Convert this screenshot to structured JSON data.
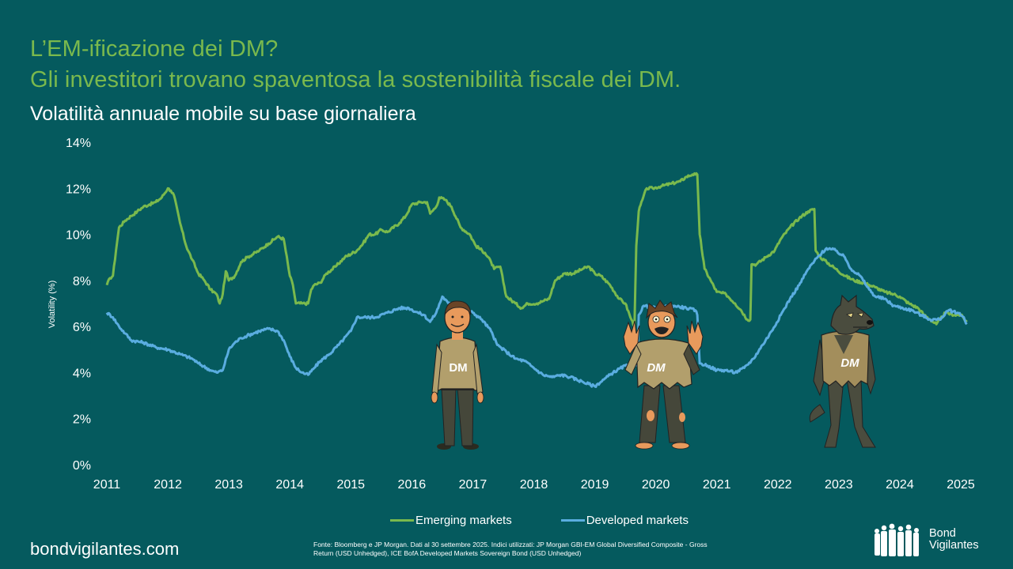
{
  "header": {
    "title_line1": "L’EM-ificazione dei DM?",
    "title_line2": "Gli investitori trovano spaventosa la sostenibilità fiscale dei DM.",
    "subtitle": "Volatilità annuale mobile su base giornaliera"
  },
  "colors": {
    "background": "#055a5e",
    "title_green": "#7ab94d",
    "emerging": "#7ab94d",
    "developed": "#5aade0"
  },
  "chart_data": {
    "type": "line",
    "title": "Volatilità annuale mobile su base giornaliera",
    "xlabel": "",
    "ylabel": "Volatility (%)",
    "xlim": [
      2011,
      2025.2
    ],
    "ylim": [
      0,
      14
    ],
    "yticks": [
      "0%",
      "2%",
      "4%",
      "6%",
      "8%",
      "10%",
      "12%",
      "14%"
    ],
    "ytick_values": [
      0,
      2,
      4,
      6,
      8,
      10,
      12,
      14
    ],
    "xticks": [
      "2011",
      "2012",
      "2013",
      "2014",
      "2015",
      "2016",
      "2017",
      "2018",
      "2019",
      "2020",
      "2021",
      "2022",
      "2023",
      "2024",
      "2025"
    ],
    "xtick_values": [
      2011,
      2012,
      2013,
      2014,
      2015,
      2016,
      2017,
      2018,
      2019,
      2020,
      2021,
      2022,
      2023,
      2024,
      2025
    ],
    "grid": false,
    "legend_position": "bottom",
    "series": [
      {
        "name": "Emerging markets",
        "color": "#7ab94d",
        "x": [
          2011.0,
          2011.05,
          2011.1,
          2011.15,
          2011.2,
          2011.3,
          2011.4,
          2011.5,
          2011.6,
          2011.7,
          2011.8,
          2011.9,
          2012.0,
          2012.05,
          2012.1,
          2012.2,
          2012.3,
          2012.4,
          2012.5,
          2012.6,
          2012.7,
          2012.8,
          2012.85,
          2012.9,
          2012.95,
          2013.0,
          2013.1,
          2013.2,
          2013.3,
          2013.5,
          2013.65,
          2013.8,
          2013.9,
          2014.0,
          2014.05,
          2014.1,
          2014.2,
          2014.3,
          2014.35,
          2014.4,
          2014.5,
          2014.6,
          2014.75,
          2014.9,
          2015.1,
          2015.2,
          2015.3,
          2015.4,
          2015.5,
          2015.6,
          2015.8,
          2015.9,
          2016.0,
          2016.15,
          2016.25,
          2016.3,
          2016.4,
          2016.45,
          2016.55,
          2016.65,
          2016.8,
          2016.95,
          2017.05,
          2017.2,
          2017.3,
          2017.35,
          2017.45,
          2017.55,
          2017.7,
          2017.8,
          2017.9,
          2018.05,
          2018.15,
          2018.25,
          2018.35,
          2018.5,
          2018.65,
          2018.8,
          2018.9,
          2019.0,
          2019.1,
          2019.25,
          2019.4,
          2019.5,
          2019.6,
          2019.65,
          2019.68,
          2019.72,
          2019.78,
          2019.85,
          2019.95,
          2020.1,
          2020.25,
          2020.4,
          2020.5,
          2020.6,
          2020.65,
          2020.68,
          2020.72,
          2020.8,
          2020.9,
          2021.0,
          2021.15,
          2021.3,
          2021.4,
          2021.5,
          2021.55,
          2021.57,
          2021.65,
          2021.8,
          2021.95,
          2022.05,
          2022.2,
          2022.35,
          2022.5,
          2022.6,
          2022.62,
          2022.7,
          2022.8,
          2022.95,
          2023.1,
          2023.25,
          2023.4,
          2023.5,
          2023.6,
          2023.75,
          2023.9,
          2024.0,
          2024.15,
          2024.3,
          2024.4,
          2024.5,
          2024.6,
          2024.75,
          2024.9,
          2025.0,
          2025.1
        ],
        "values": [
          7.8,
          8.1,
          8.2,
          9.3,
          10.3,
          10.6,
          10.8,
          11.0,
          11.2,
          11.3,
          11.4,
          11.6,
          12.0,
          11.9,
          11.7,
          10.5,
          9.5,
          8.9,
          8.3,
          8.0,
          7.6,
          7.4,
          7.0,
          7.4,
          8.4,
          8.0,
          8.2,
          8.8,
          9.0,
          9.3,
          9.6,
          9.9,
          9.8,
          8.2,
          7.8,
          7.0,
          7.0,
          7.0,
          7.6,
          7.8,
          7.9,
          8.3,
          8.6,
          9.0,
          9.3,
          9.6,
          10.0,
          10.0,
          10.2,
          10.1,
          10.5,
          10.8,
          11.3,
          11.4,
          11.4,
          10.9,
          11.2,
          11.6,
          11.5,
          11.2,
          10.3,
          10.0,
          9.5,
          9.2,
          8.8,
          8.5,
          8.6,
          7.3,
          7.0,
          6.8,
          7.0,
          7.0,
          7.1,
          7.2,
          8.0,
          8.3,
          8.3,
          8.5,
          8.6,
          8.3,
          8.2,
          7.8,
          7.2,
          7.0,
          6.3,
          6.0,
          9.5,
          11.0,
          11.5,
          12.0,
          12.0,
          12.1,
          12.2,
          12.3,
          12.5,
          12.6,
          12.6,
          12.6,
          10.0,
          8.5,
          8.0,
          7.5,
          7.4,
          7.0,
          6.7,
          6.3,
          6.3,
          8.7,
          8.7,
          9.0,
          9.3,
          9.8,
          10.3,
          10.7,
          11.0,
          11.1,
          9.3,
          9.0,
          8.8,
          8.5,
          8.2,
          8.0,
          7.9,
          7.8,
          7.7,
          7.5,
          7.4,
          7.3,
          7.0,
          6.8,
          6.5,
          6.3,
          6.1,
          6.6,
          6.5,
          6.5,
          6.2
        ],
        "xlabel": "Emerging markets"
      },
      {
        "name": "Developed markets",
        "color": "#5aade0",
        "x": [
          2011.0,
          2011.1,
          2011.2,
          2011.3,
          2011.4,
          2011.6,
          2011.8,
          2012.0,
          2012.2,
          2012.4,
          2012.5,
          2012.7,
          2012.8,
          2012.9,
          2013.0,
          2013.1,
          2013.2,
          2013.3,
          2013.5,
          2013.65,
          2013.8,
          2013.9,
          2014.0,
          2014.1,
          2014.2,
          2014.3,
          2014.4,
          2014.5,
          2014.65,
          2014.8,
          2015.0,
          2015.1,
          2015.25,
          2015.4,
          2015.6,
          2015.8,
          2015.95,
          2016.1,
          2016.2,
          2016.3,
          2016.4,
          2016.5,
          2016.6,
          2016.75,
          2016.9,
          2017.0,
          2017.15,
          2017.3,
          2017.4,
          2017.55,
          2017.7,
          2017.85,
          2018.0,
          2018.15,
          2018.3,
          2018.45,
          2018.6,
          2018.8,
          2019.0,
          2019.15,
          2019.3,
          2019.5,
          2019.65,
          2019.7,
          2019.72,
          2019.8,
          2020.0,
          2020.3,
          2020.5,
          2020.65,
          2020.68,
          2020.72,
          2020.85,
          2021.0,
          2021.15,
          2021.3,
          2021.45,
          2021.6,
          2021.75,
          2021.9,
          2022.05,
          2022.2,
          2022.35,
          2022.5,
          2022.65,
          2022.8,
          2022.95,
          2023.1,
          2023.2,
          2023.35,
          2023.5,
          2023.6,
          2023.75,
          2023.9,
          2024.05,
          2024.2,
          2024.35,
          2024.5,
          2024.65,
          2024.8,
          2024.95,
          2025.05,
          2025.1
        ],
        "values": [
          6.6,
          6.4,
          6.0,
          5.7,
          5.4,
          5.3,
          5.1,
          5.0,
          4.8,
          4.6,
          4.4,
          4.1,
          4.0,
          4.1,
          5.0,
          5.3,
          5.5,
          5.6,
          5.8,
          5.9,
          5.8,
          5.4,
          4.7,
          4.2,
          4.0,
          3.9,
          4.2,
          4.5,
          4.8,
          5.2,
          5.8,
          6.4,
          6.4,
          6.4,
          6.6,
          6.8,
          6.8,
          6.6,
          6.5,
          6.2,
          6.6,
          7.3,
          7.0,
          6.9,
          6.7,
          6.6,
          6.3,
          5.8,
          5.2,
          4.9,
          4.6,
          4.5,
          4.2,
          3.9,
          3.8,
          3.9,
          3.8,
          3.6,
          3.4,
          3.7,
          4.0,
          4.3,
          4.3,
          4.4,
          6.5,
          6.9,
          6.8,
          6.9,
          6.8,
          6.7,
          6.5,
          4.4,
          4.3,
          4.1,
          4.1,
          4.0,
          4.2,
          4.6,
          5.2,
          5.8,
          6.5,
          7.2,
          7.8,
          8.5,
          9.0,
          9.4,
          9.3,
          9.0,
          8.5,
          8.2,
          7.6,
          7.3,
          7.2,
          6.9,
          6.8,
          6.7,
          6.5,
          6.3,
          6.3,
          6.7,
          6.6,
          6.4,
          6.1
        ]
      }
    ]
  },
  "figures": {
    "normal_dm_label": "DM",
    "scared_dm_label": "DM",
    "wolf_dm_label": "DM"
  },
  "legend": {
    "emerging_label": "Emerging markets",
    "developed_label": "Developed markets"
  },
  "footer": {
    "site": "bondvigilantes.com",
    "source_line1": "Fonte: Bloomberg e JP Morgan. Dati al 30 settembre 2025. Indici utilizzati: JP Morgan GBI-EM Global Diversified Composite - Gross",
    "source_line2": "Return (USD Unhedged), ICE BofA Developed Markets Sovereign Bond (USD Unhedged)",
    "logo_line1": "Bond",
    "logo_line2": "Vigilantes"
  }
}
